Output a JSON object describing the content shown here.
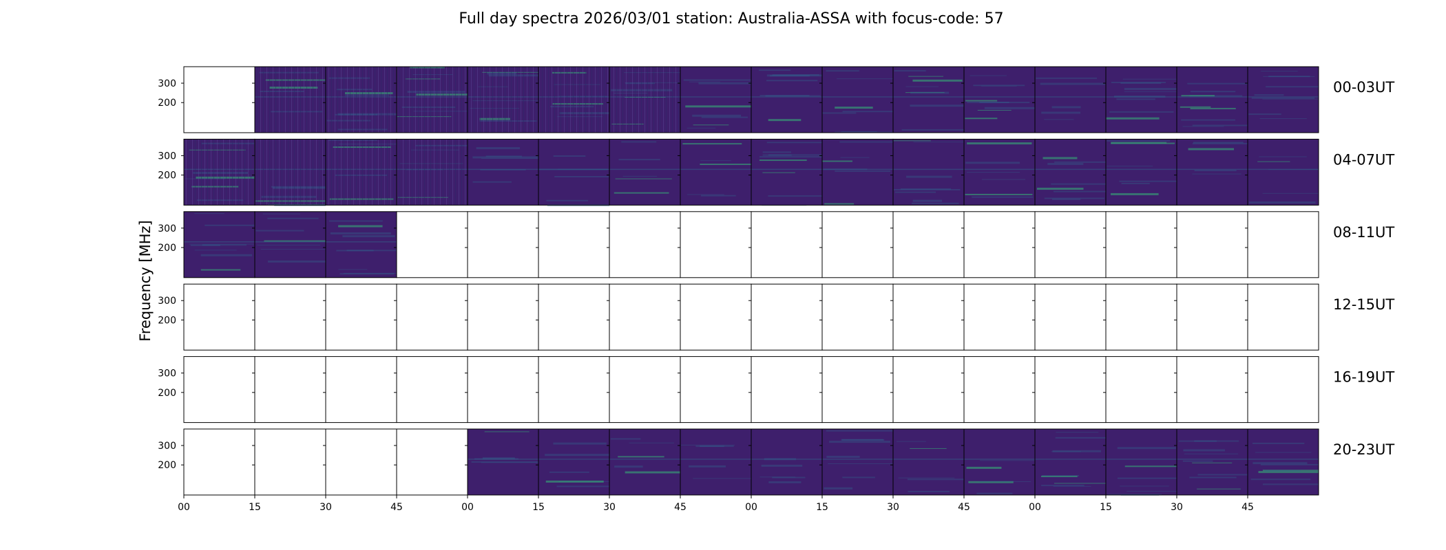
{
  "chart_data": {
    "type": "heatmap",
    "title": "Full day spectra 2026/03/01 station: Australia-ASSA with focus-code: 57",
    "ylabel": "Frequency [MHz]",
    "ylim": [
      45,
      385
    ],
    "y_ticks": [
      200,
      300
    ],
    "x_tick_labels": [
      "00",
      "15",
      "30",
      "45",
      "00",
      "15",
      "30",
      "45",
      "00",
      "15",
      "30",
      "45",
      "00",
      "15",
      "30",
      "45"
    ],
    "panel_minutes": 15,
    "panels_per_row": 16,
    "rows": [
      {
        "label": "00-03UT",
        "available": [
          0,
          1,
          1,
          1,
          1,
          1,
          1,
          1,
          1,
          1,
          1,
          1,
          1,
          1,
          1,
          1
        ]
      },
      {
        "label": "04-07UT",
        "available": [
          1,
          1,
          1,
          1,
          1,
          1,
          1,
          1,
          1,
          1,
          1,
          1,
          1,
          1,
          1,
          1
        ]
      },
      {
        "label": "08-11UT",
        "available": [
          1,
          1,
          1,
          0,
          0,
          0,
          0,
          0,
          0,
          0,
          0,
          0,
          0,
          0,
          0,
          0
        ]
      },
      {
        "label": "12-15UT",
        "available": [
          0,
          0,
          0,
          0,
          0,
          0,
          0,
          0,
          0,
          0,
          0,
          0,
          0,
          0,
          0,
          0
        ]
      },
      {
        "label": "16-19UT",
        "available": [
          0,
          0,
          0,
          0,
          0,
          0,
          0,
          0,
          0,
          0,
          0,
          0,
          0,
          0,
          0,
          0
        ]
      },
      {
        "label": "20-23UT",
        "available": [
          0,
          0,
          0,
          0,
          1,
          1,
          1,
          1,
          1,
          1,
          1,
          1,
          1,
          1,
          1,
          1
        ]
      }
    ],
    "colormap": {
      "background": "#3e1f6c",
      "mid": "#31688e",
      "high": "#35b779"
    }
  }
}
